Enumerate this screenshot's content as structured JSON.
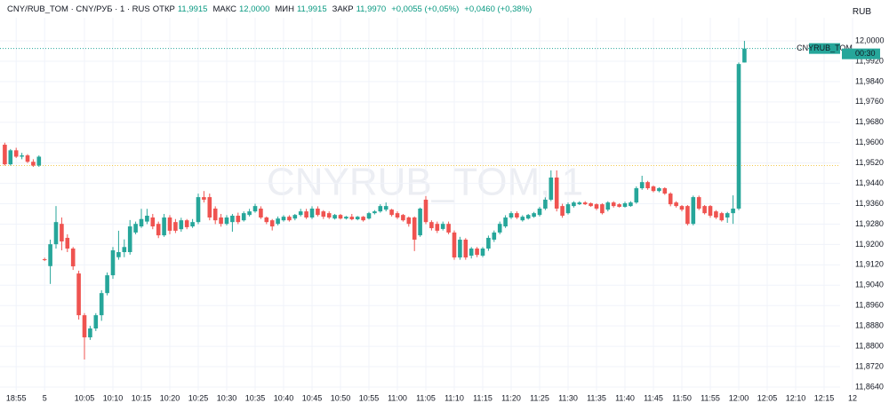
{
  "chart_data": {
    "type": "candlestick",
    "title": "CNY/RUB_TOM · CNY/РУБ · 1 · RUS",
    "header": {
      "open_label": "ОТКР",
      "open": "11,9915",
      "high_label": "МАКС",
      "high": "12,0000",
      "low_label": "МИН",
      "low": "11,9915",
      "close_label": "ЗАКР",
      "close": "11,9970",
      "change": "+0,0055 (+0,05%)",
      "change_total": "+0,0460 (+0,38%)"
    },
    "currency": "RUB",
    "watermark": "CNYRUB_TOM, 1",
    "price_tag": "CNYRUB_TOM",
    "countdown": "00:30",
    "up_color": "#26a69a",
    "down_color": "#ef5350",
    "grid": true,
    "reference_line": 11.951,
    "ylim": [
      11.8584,
      12.0056
    ],
    "yticks": [
      {
        "value": 12,
        "label": "12,0000"
      },
      {
        "value": 11.992,
        "label": "11,9920"
      },
      {
        "value": 11.984,
        "label": "11,9840"
      },
      {
        "value": 11.976,
        "label": "11,9760"
      },
      {
        "value": 11.968,
        "label": "11,9680"
      },
      {
        "value": 11.96,
        "label": "11,9600"
      },
      {
        "value": 11.952,
        "label": "11,9520"
      },
      {
        "value": 11.944,
        "label": "11,9440"
      },
      {
        "value": 11.936,
        "label": "11,9360"
      },
      {
        "value": 11.928,
        "label": "11,9280"
      },
      {
        "value": 11.92,
        "label": "11,9200"
      },
      {
        "value": 11.912,
        "label": "11,9120"
      },
      {
        "value": 11.904,
        "label": "11,9040"
      },
      {
        "value": 11.896,
        "label": "11,8960"
      },
      {
        "value": 11.888,
        "label": "11,8880"
      },
      {
        "value": 11.88,
        "label": "11,8800"
      },
      {
        "value": 11.872,
        "label": "11,8720"
      },
      {
        "value": 11.864,
        "label": "11,8640"
      }
    ],
    "categories": [
      null,
      null,
      "18:55",
      null,
      null,
      null,
      null,
      "5",
      null,
      null,
      null,
      null,
      null,
      null,
      "10:05",
      null,
      null,
      null,
      null,
      "10:10",
      null,
      null,
      null,
      null,
      "10:15",
      null,
      null,
      null,
      null,
      "10:20",
      null,
      null,
      null,
      null,
      "10:25",
      null,
      null,
      null,
      null,
      "10:30",
      null,
      null,
      null,
      null,
      "10:35",
      null,
      null,
      null,
      null,
      "10:40",
      null,
      null,
      null,
      null,
      "10:45",
      null,
      null,
      null,
      null,
      "10:50",
      null,
      null,
      null,
      null,
      "10:55",
      null,
      null,
      null,
      null,
      "11:00",
      null,
      null,
      null,
      null,
      "11:05",
      null,
      null,
      null,
      null,
      "11:10",
      null,
      null,
      null,
      null,
      "11:15",
      null,
      null,
      null,
      null,
      "11:20",
      null,
      null,
      null,
      null,
      "11:25",
      null,
      null,
      null,
      null,
      "11:30",
      null,
      null,
      null,
      null,
      "11:35",
      null,
      null,
      null,
      null,
      "11:40",
      null,
      null,
      null,
      null,
      "11:45",
      null,
      null,
      null,
      null,
      "11:50",
      null,
      null,
      null,
      null,
      "11:55",
      null,
      null,
      null,
      null,
      "12:00",
      null,
      null,
      null,
      null,
      "12:05",
      null,
      null,
      null,
      null,
      "12:10",
      null,
      null,
      null,
      null,
      "12:15",
      null,
      null,
      null,
      null,
      "12"
    ],
    "open": [
      11.9592,
      11.9515,
      11.957,
      11.9545,
      11.955,
      11.9525,
      11.951,
      11.9142,
      11.9115,
      11.9201,
      11.9281,
      11.9226,
      11.9184,
      11.9086,
      11.8922,
      11.8835,
      11.887,
      11.8922,
      11.9009,
      11.9079,
      11.915,
      11.917,
      11.917,
      11.9247,
      11.9271,
      11.929,
      11.9306,
      11.9281,
      11.9236,
      11.9306,
      11.9288,
      11.926,
      11.9295,
      11.9271,
      11.9288,
      11.9386,
      11.9386,
      11.9341,
      11.9306,
      11.9281,
      11.9288,
      11.9313,
      11.9295,
      11.9316,
      11.933,
      11.9341,
      11.9306,
      11.9295,
      11.9281,
      11.9295,
      11.9309,
      11.9302,
      11.9316,
      11.933,
      11.9306,
      11.9341,
      11.933,
      11.9323,
      11.9302,
      11.9316,
      11.9302,
      11.9309,
      11.9299,
      11.9309,
      11.9302,
      11.9323,
      11.933,
      11.9337,
      11.9337,
      11.9323,
      11.9316,
      11.9306,
      11.9306,
      11.9236,
      11.9376,
      11.9288,
      11.9281,
      11.9261,
      11.9281,
      11.9247,
      11.9149,
      11.9219,
      11.9156,
      11.9184,
      11.9156,
      11.9184,
      11.9219,
      11.9247,
      11.9271,
      11.9306,
      11.9323,
      11.9295,
      11.9302,
      11.9309,
      11.9316,
      11.9341,
      11.9376,
      11.9463,
      11.9351,
      11.9323,
      11.9351,
      11.9358,
      11.9365,
      11.9362,
      11.9358,
      11.9358,
      11.9337,
      11.9365,
      11.9358,
      11.9348,
      11.9351,
      11.9365,
      11.9421,
      11.9445,
      11.9428,
      11.941,
      11.9421,
      11.94,
      11.9365,
      11.9351,
      11.9351,
      11.9281,
      11.9386,
      11.9351,
      11.9351,
      11.933,
      11.9323,
      11.9306,
      11.9323,
      11.9341,
      11.9915,
      null,
      null,
      null,
      null,
      null,
      null,
      null,
      null,
      null,
      null,
      null,
      null,
      null,
      null,
      null,
      null,
      null,
      null,
      null
    ],
    "high": [
      11.96,
      11.9575,
      11.958,
      11.956,
      11.9555,
      11.9535,
      11.955,
      11.9148,
      11.9219,
      11.9351,
      11.9306,
      11.924,
      11.919,
      11.9097,
      11.893,
      11.888,
      11.893,
      11.902,
      11.909,
      11.919,
      11.9254,
      11.922,
      11.9296,
      11.929,
      11.934,
      11.934,
      11.932,
      11.929,
      11.932,
      11.9315,
      11.93,
      11.9305,
      11.93,
      11.93,
      11.94,
      11.941,
      11.94,
      11.935,
      11.932,
      11.9315,
      11.932,
      11.9325,
      11.933,
      11.934,
      11.936,
      11.935,
      11.931,
      11.93,
      11.931,
      11.9315,
      11.9315,
      11.932,
      11.934,
      11.934,
      11.935,
      11.935,
      11.9335,
      11.933,
      11.932,
      11.932,
      11.9312,
      11.932,
      11.9312,
      11.9312,
      11.9328,
      11.9335,
      11.9358,
      11.9365,
      11.934,
      11.933,
      11.932,
      11.931,
      11.931,
      11.9345,
      11.939,
      11.9295,
      11.929,
      11.929,
      11.929,
      11.9255,
      11.923,
      11.9225,
      11.919,
      11.919,
      11.919,
      11.9235,
      11.9255,
      11.929,
      11.9315,
      11.933,
      11.933,
      11.9315,
      11.932,
      11.9328,
      11.9348,
      11.9385,
      11.9491,
      11.9491,
      11.936,
      11.9365,
      11.937,
      11.937,
      11.937,
      11.9365,
      11.9362,
      11.9362,
      11.937,
      11.937,
      11.9362,
      11.9368,
      11.937,
      11.9428,
      11.947,
      11.945,
      11.9432,
      11.9425,
      11.9425,
      11.9405,
      11.937,
      11.9355,
      11.9355,
      11.9392,
      11.9392,
      11.9355,
      11.9355,
      11.9335,
      11.9328,
      11.9328,
      11.9393,
      11.9915,
      12,
      null,
      null,
      null,
      null,
      null,
      null,
      null,
      null,
      null,
      null,
      null,
      null,
      null,
      null,
      null,
      null,
      null,
      null,
      null
    ],
    "low": [
      11.951,
      11.951,
      11.954,
      11.9535,
      11.952,
      11.9505,
      11.9505,
      11.9135,
      11.9045,
      11.9184,
      11.9177,
      11.917,
      11.91,
      11.8905,
      11.8748,
      11.8825,
      11.886,
      11.89,
      11.9,
      11.9065,
      11.914,
      11.915,
      11.916,
      11.924,
      11.9265,
      11.928,
      11.926,
      11.9225,
      11.923,
      11.924,
      11.9245,
      11.925,
      11.926,
      11.9265,
      11.928,
      11.9365,
      11.9295,
      11.928,
      11.927,
      11.9275,
      11.925,
      11.928,
      11.929,
      11.931,
      11.9325,
      11.93,
      11.928,
      11.9255,
      11.9275,
      11.929,
      11.929,
      11.9295,
      11.931,
      11.93,
      11.93,
      11.931,
      11.93,
      11.93,
      11.9298,
      11.9298,
      11.9298,
      11.9295,
      11.9295,
      11.929,
      11.9298,
      11.9318,
      11.9325,
      11.933,
      11.931,
      11.93,
      11.929,
      11.927,
      11.9174,
      11.923,
      11.928,
      11.9255,
      11.9245,
      11.9255,
      11.924,
      11.914,
      11.914,
      11.914,
      11.9145,
      11.915,
      11.915,
      11.9175,
      11.921,
      11.924,
      11.9265,
      11.93,
      11.93,
      11.929,
      11.9298,
      11.9305,
      11.931,
      11.9335,
      11.937,
      11.933,
      11.9305,
      11.9318,
      11.9345,
      11.9355,
      11.9355,
      11.9348,
      11.9335,
      11.9318,
      11.933,
      11.9345,
      11.9345,
      11.9345,
      11.9348,
      11.936,
      11.9415,
      11.9415,
      11.9405,
      11.9405,
      11.9395,
      11.935,
      11.9345,
      11.933,
      11.9275,
      11.9275,
      11.9335,
      11.9318,
      11.9305,
      11.93,
      11.929,
      11.9285,
      11.9281,
      11.9335,
      11.9915,
      null,
      null,
      null,
      null,
      null,
      null,
      null,
      null,
      null,
      null,
      null,
      null,
      null,
      null,
      null,
      null,
      null,
      null,
      null
    ],
    "close": [
      11.9515,
      11.957,
      11.9545,
      11.955,
      11.9525,
      11.951,
      11.9545,
      11.914,
      11.9201,
      11.9288,
      11.9212,
      11.9184,
      11.9114,
      11.8922,
      11.8835,
      11.887,
      11.8922,
      11.9009,
      11.9079,
      11.9177,
      11.917,
      11.919,
      11.9271,
      11.9281,
      11.93,
      11.9313,
      11.9271,
      11.9236,
      11.9306,
      11.9254,
      11.9254,
      11.9295,
      11.9268,
      11.9288,
      11.9386,
      11.9376,
      11.9306,
      11.9295,
      11.9281,
      11.9306,
      11.9313,
      11.9288,
      11.9323,
      11.933,
      11.9351,
      11.9306,
      11.9288,
      11.9271,
      11.9302,
      11.9309,
      11.9295,
      11.9316,
      11.933,
      11.9306,
      11.9341,
      11.9316,
      11.9309,
      11.9306,
      11.9316,
      11.9302,
      11.9309,
      11.9299,
      11.9309,
      11.9295,
      11.9323,
      11.933,
      11.9351,
      11.9351,
      11.9316,
      11.9306,
      11.9295,
      11.9281,
      11.9219,
      11.9341,
      11.9288,
      11.9264,
      11.9254,
      11.9281,
      11.9247,
      11.9149,
      11.9219,
      11.9149,
      11.9184,
      11.9159,
      11.9184,
      11.9226,
      11.9247,
      11.9281,
      11.9306,
      11.9323,
      11.9306,
      11.9309,
      11.9316,
      11.9323,
      11.9341,
      11.9376,
      11.9463,
      11.9341,
      11.9313,
      11.9358,
      11.9365,
      11.9365,
      11.9358,
      11.9351,
      11.9341,
      11.9323,
      11.9365,
      11.9351,
      11.9348,
      11.9362,
      11.9365,
      11.9421,
      11.9445,
      11.9421,
      11.941,
      11.9421,
      11.94,
      11.9358,
      11.9351,
      11.9337,
      11.9281,
      11.9386,
      11.9341,
      11.9323,
      11.9313,
      11.9306,
      11.9295,
      11.9323,
      11.9341,
      11.9909,
      11.997,
      null,
      null,
      null,
      null,
      null,
      null,
      null,
      null,
      null,
      null,
      null,
      null,
      null,
      null,
      null,
      null,
      null,
      null,
      null
    ]
  }
}
